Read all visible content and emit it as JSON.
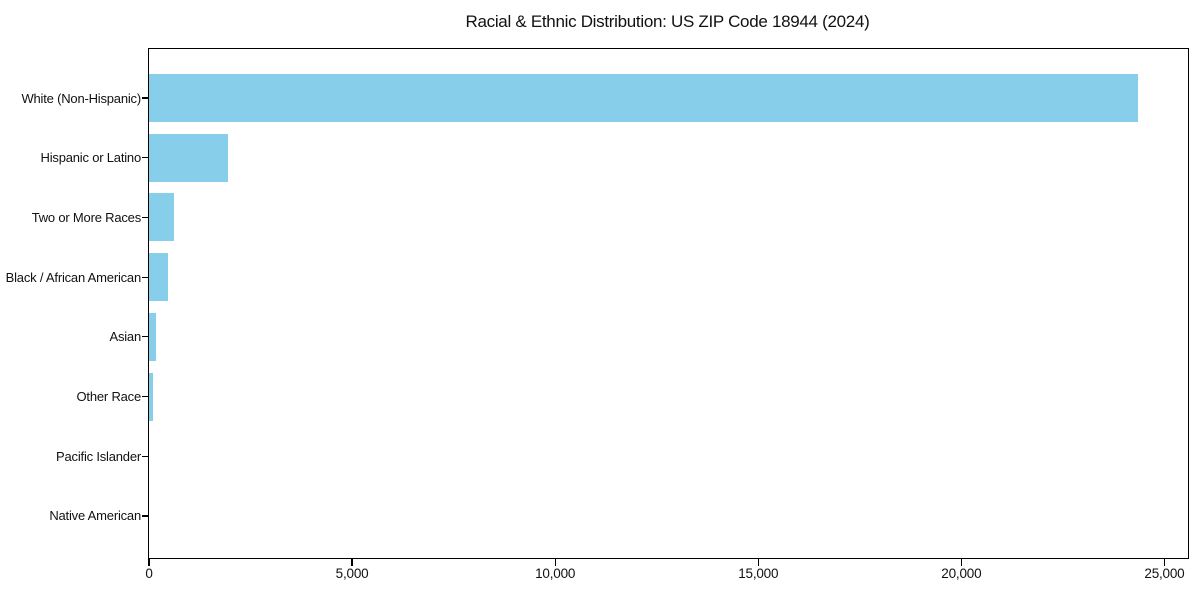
{
  "figure": {
    "title": "Racial & Ethnic Distribution: US ZIP Code 18944 (2024)"
  },
  "chart_data": {
    "type": "bar",
    "orientation": "horizontal",
    "title": "Racial & Ethnic Distribution: US ZIP Code 18944 (2024)",
    "categories": [
      "White (Non-Hispanic)",
      "Hispanic or Latino",
      "Two or More Races",
      "Black / African American",
      "Asian",
      "Other Race",
      "Pacific Islander",
      "Native American"
    ],
    "values": [
      24350,
      1950,
      615,
      470,
      170,
      100,
      0,
      0
    ],
    "xlabel": "",
    "ylabel": "",
    "xlim": [
      0,
      25580
    ],
    "xticks": [
      0,
      5000,
      10000,
      15000,
      20000,
      25000
    ],
    "xtick_labels": [
      "0",
      "5,000",
      "10,000",
      "15,000",
      "20,000",
      "25,000"
    ],
    "bar_color": "#87CEEB",
    "spine_color": "#000000",
    "background_color": "#ffffff",
    "grid": false,
    "legend": null
  }
}
